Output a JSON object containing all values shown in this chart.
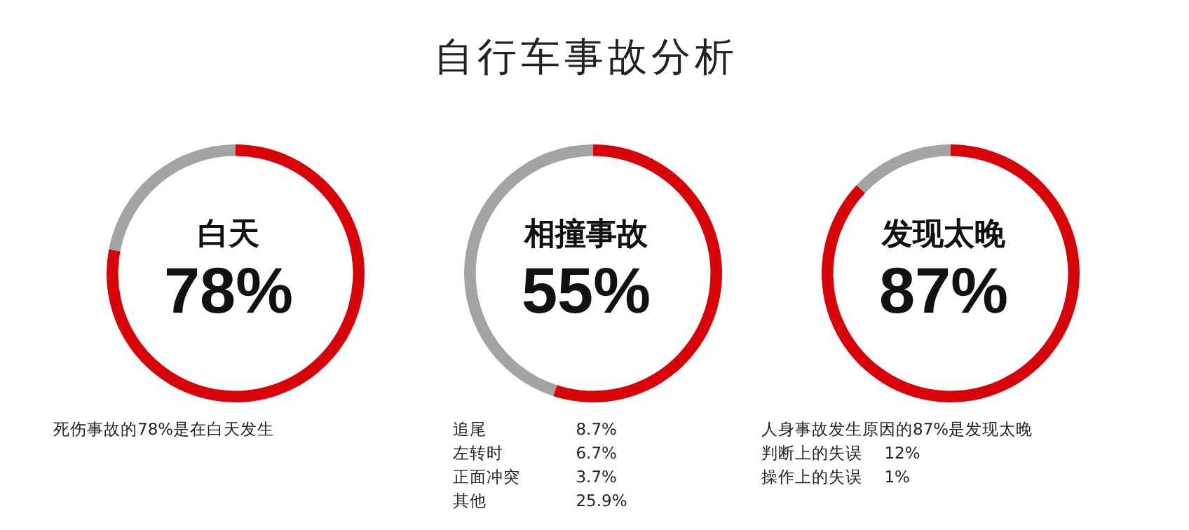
{
  "chart_data": [
    {
      "type": "donut",
      "categories": [
        "白天",
        null
      ],
      "values": [
        78,
        22
      ],
      "colors": [
        "#d9040a",
        "#a3a3a3"
      ],
      "value_labels": [
        "78%",
        null
      ],
      "annotations": [
        "死伤事故的78%是在白天发生"
      ]
    },
    {
      "type": "donut",
      "title": "自行车事故分析",
      "categories": [
        "相撞事故",
        null
      ],
      "values": [
        55,
        45
      ],
      "colors": [
        "#d9040a",
        "#a3a3a3"
      ],
      "value_labels": [
        "55%",
        null
      ],
      "annotations": [
        "追尾\t8.7%",
        "左转时\t6.7%",
        "正面冲突\t3.7%",
        "其他\t25.9%"
      ]
    },
    {
      "type": "donut",
      "categories": [
        "发现太晚",
        null
      ],
      "values": [
        87,
        13
      ],
      "colors": [
        "#d9040a",
        "#a3a3a3"
      ],
      "value_labels": [
        "87%",
        null
      ],
      "annotations": [
        "人身事故发生原因的87%是发现太晚",
        "判断上的失误\t12%",
        "操作上的失误\t1%"
      ]
    }
  ]
}
